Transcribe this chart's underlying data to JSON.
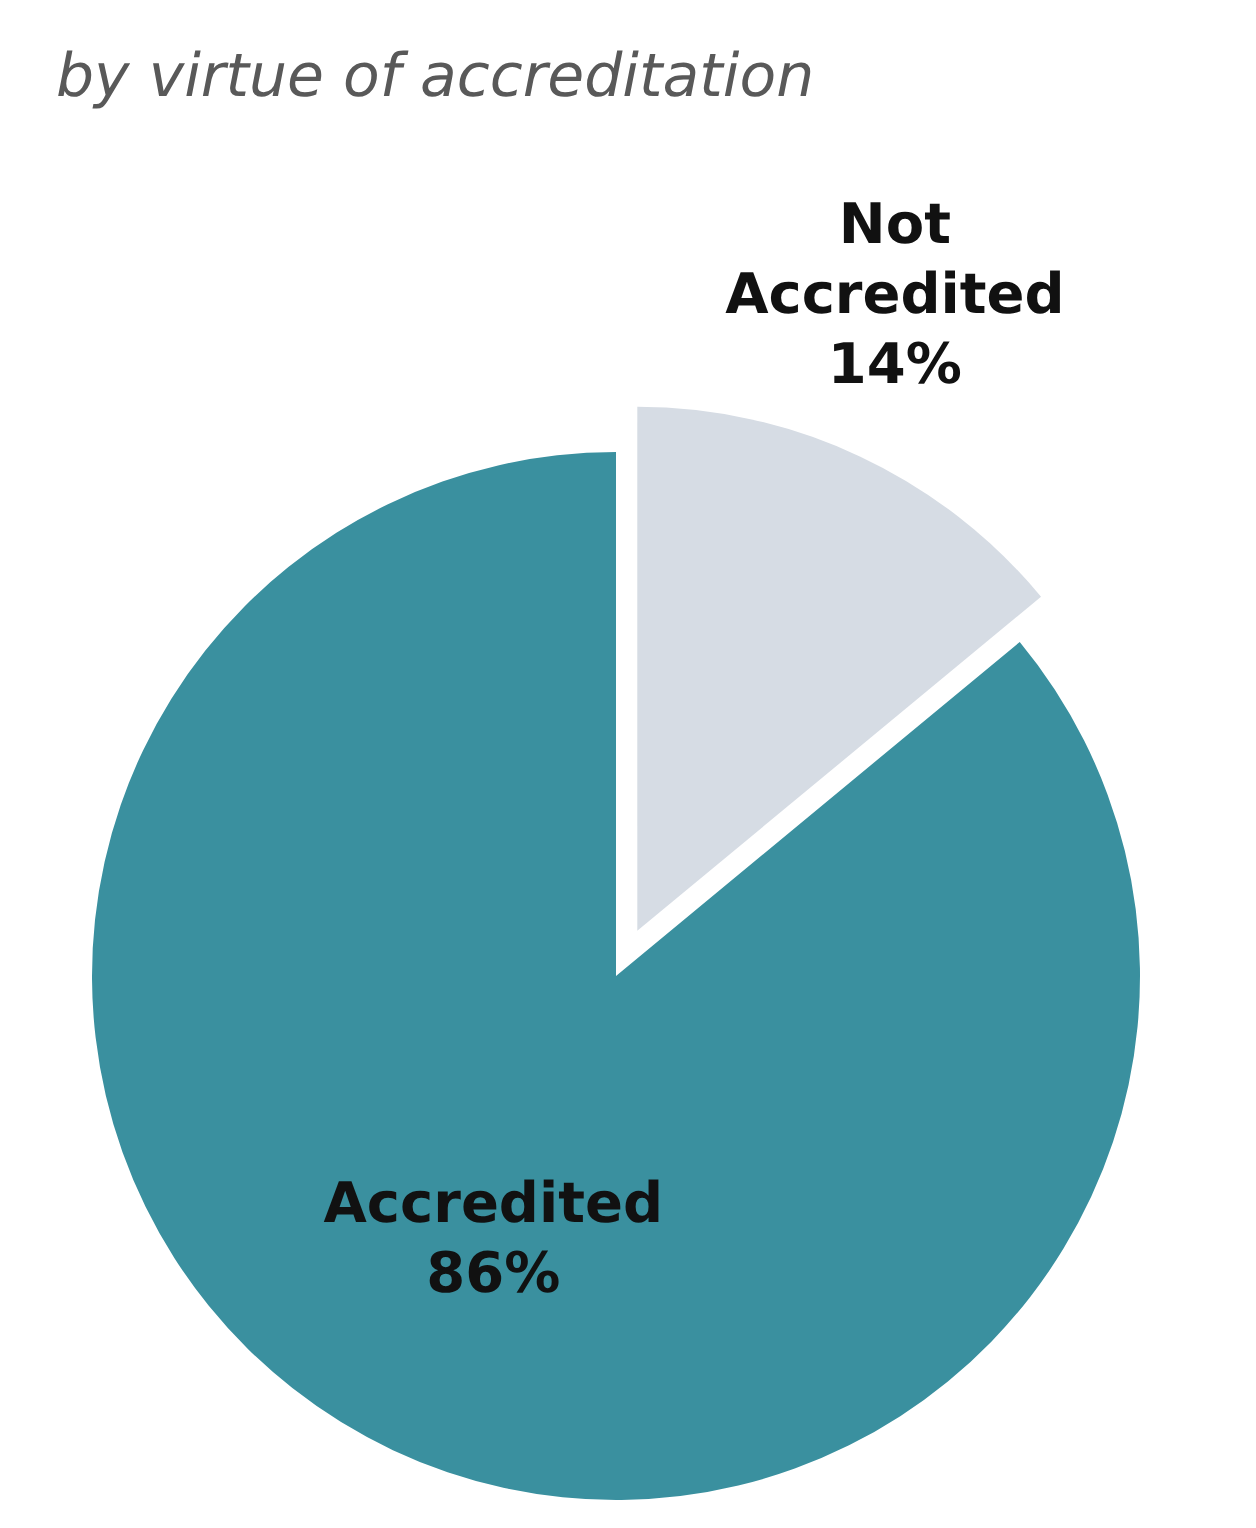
{
  "chart_data": {
    "type": "pie",
    "title": "by virtue of accreditation",
    "categories": [
      "Not Accredited",
      "Accredited"
    ],
    "values": [
      14,
      86
    ],
    "value_labels": [
      "14%",
      "86%"
    ],
    "colors": [
      "#d6dce4",
      "#3a909f"
    ]
  }
}
